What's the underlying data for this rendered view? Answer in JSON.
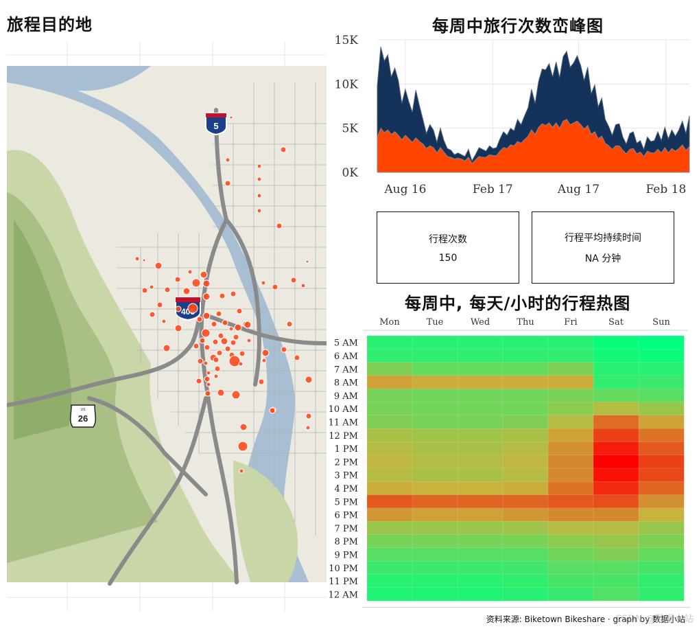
{
  "map": {
    "title": "旅程目的地",
    "shields": {
      "interstate_405": "405",
      "interstate_5": "5",
      "us_26": "26",
      "us_label": "US"
    }
  },
  "area": {
    "title": "每周中旅行次数峦峰图",
    "y_ticks": [
      "15K",
      "10K",
      "5K",
      "0K"
    ],
    "x_ticks": [
      "Aug 16",
      "Feb 17",
      "Aug 17",
      "Feb 18"
    ],
    "colors": {
      "total": "#14325a",
      "subset": "#ff4500",
      "grid": "#e6e6e6"
    }
  },
  "kpis": {
    "trips": {
      "label": "行程次数",
      "value": "150"
    },
    "duration": {
      "label": "行程平均持续时间",
      "value": "NA 分钟"
    }
  },
  "heatmap": {
    "title": "每周中, 每天/小时的行程热图",
    "days": [
      "Mon",
      "Tue",
      "Wed",
      "Thu",
      "Fri",
      "Sat",
      "Sun"
    ],
    "hours": [
      "5 AM",
      "6 AM",
      "7 AM",
      "8 AM",
      "9 AM",
      "10 AM",
      "11 AM",
      "12 PM",
      "1 PM",
      "2 PM",
      "3 PM",
      "4 PM",
      "5 PM",
      "6 PM",
      "7 PM",
      "8 PM",
      "9 PM",
      "10 PM",
      "11 PM",
      "12 AM"
    ],
    "intensity": [
      [
        0.1,
        0.1,
        0.1,
        0.1,
        0.1,
        0.02,
        0.0
      ],
      [
        0.12,
        0.12,
        0.12,
        0.12,
        0.12,
        0.05,
        0.03
      ],
      [
        0.32,
        0.25,
        0.25,
        0.25,
        0.32,
        0.1,
        0.1
      ],
      [
        0.55,
        0.52,
        0.52,
        0.52,
        0.52,
        0.12,
        0.15
      ],
      [
        0.3,
        0.28,
        0.28,
        0.28,
        0.3,
        0.25,
        0.22
      ],
      [
        0.3,
        0.28,
        0.28,
        0.28,
        0.35,
        0.45,
        0.38
      ],
      [
        0.32,
        0.3,
        0.3,
        0.32,
        0.45,
        0.7,
        0.55
      ],
      [
        0.42,
        0.4,
        0.4,
        0.42,
        0.55,
        0.82,
        0.68
      ],
      [
        0.45,
        0.42,
        0.42,
        0.45,
        0.6,
        0.92,
        0.75
      ],
      [
        0.48,
        0.45,
        0.45,
        0.48,
        0.62,
        1.0,
        0.82
      ],
      [
        0.45,
        0.42,
        0.42,
        0.45,
        0.62,
        0.95,
        0.8
      ],
      [
        0.52,
        0.5,
        0.5,
        0.52,
        0.68,
        0.88,
        0.72
      ],
      [
        0.75,
        0.72,
        0.72,
        0.72,
        0.75,
        0.78,
        0.6
      ],
      [
        0.58,
        0.55,
        0.55,
        0.58,
        0.62,
        0.62,
        0.5
      ],
      [
        0.38,
        0.38,
        0.38,
        0.4,
        0.45,
        0.45,
        0.38
      ],
      [
        0.3,
        0.3,
        0.3,
        0.3,
        0.35,
        0.38,
        0.32
      ],
      [
        0.22,
        0.22,
        0.22,
        0.22,
        0.28,
        0.32,
        0.25
      ],
      [
        0.15,
        0.15,
        0.15,
        0.16,
        0.22,
        0.22,
        0.18
      ],
      [
        0.1,
        0.1,
        0.1,
        0.12,
        0.18,
        0.18,
        0.12
      ],
      [
        0.08,
        0.08,
        0.08,
        0.1,
        0.14,
        0.2,
        0.12
      ]
    ],
    "color_low": "#00ff80",
    "color_high": "#ff0000"
  },
  "chart_data": {
    "type": "area",
    "title": "每周中旅行次数峦峰图",
    "xlabel": "",
    "ylabel": "",
    "x_ticks": [
      "Aug 16",
      "Feb 17",
      "Aug 17",
      "Feb 18"
    ],
    "ylim": [
      0,
      15000
    ],
    "y_ticks": [
      0,
      5000,
      10000,
      15000
    ],
    "grid": true,
    "series": [
      {
        "values": [
          9800,
          14200,
          12600,
          13300,
          10800,
          11800,
          10400,
          7800,
          9400,
          8000,
          6800,
          9300,
          7600,
          6000,
          4400,
          5400,
          4800,
          3400,
          5000,
          3600,
          2700,
          2500,
          2000,
          2200,
          2000,
          1800,
          2600,
          1300,
          2000,
          2800,
          2600,
          2400,
          3000,
          2700,
          2800,
          3800,
          4600,
          4200,
          5000,
          4700,
          6000,
          5400,
          6400,
          7300,
          9400,
          7800,
          10300,
          11700,
          11600,
          12300,
          10800,
          12500,
          10700,
          13100,
          13700,
          11900,
          12400,
          13200,
          12100,
          10400,
          11900,
          8900,
          9900,
          7400,
          8400,
          6000,
          5200,
          4200,
          5400,
          5500,
          4000,
          3200,
          4400,
          4600,
          3300,
          3600,
          2600,
          4000,
          3500,
          3600,
          4600,
          3600,
          5100,
          3800,
          4800,
          4100,
          4800,
          5800,
          4400,
          6400
        ]
      },
      {
        "values": [
          4000,
          5000,
          4500,
          4800,
          4300,
          4600,
          4200,
          3700,
          4200,
          3800,
          3400,
          3900,
          3500,
          3200,
          2700,
          3000,
          2800,
          2200,
          2800,
          2300,
          1800,
          1700,
          1500,
          1600,
          1500,
          1300,
          1700,
          1000,
          1400,
          1800,
          1700,
          1700,
          2000,
          1900,
          1900,
          2400,
          2800,
          2700,
          3100,
          3000,
          3500,
          3300,
          3700,
          4100,
          4800,
          4300,
          5100,
          5500,
          5300,
          5600,
          5100,
          5600,
          5000,
          5800,
          6000,
          5400,
          5600,
          5800,
          5400,
          4900,
          5300,
          4300,
          4600,
          3800,
          4100,
          3300,
          3000,
          2600,
          3000,
          3000,
          2500,
          2100,
          2600,
          2700,
          2100,
          2300,
          1800,
          2400,
          2200,
          2200,
          2600,
          2200,
          2800,
          2200,
          2700,
          2400,
          2700,
          3100,
          2500,
          2900
        ]
      }
    ]
  },
  "footer": {
    "source": "资料来源: Biketown Bikeshare · graph by 数据小站",
    "watermark": "CSDN @数据小站"
  }
}
